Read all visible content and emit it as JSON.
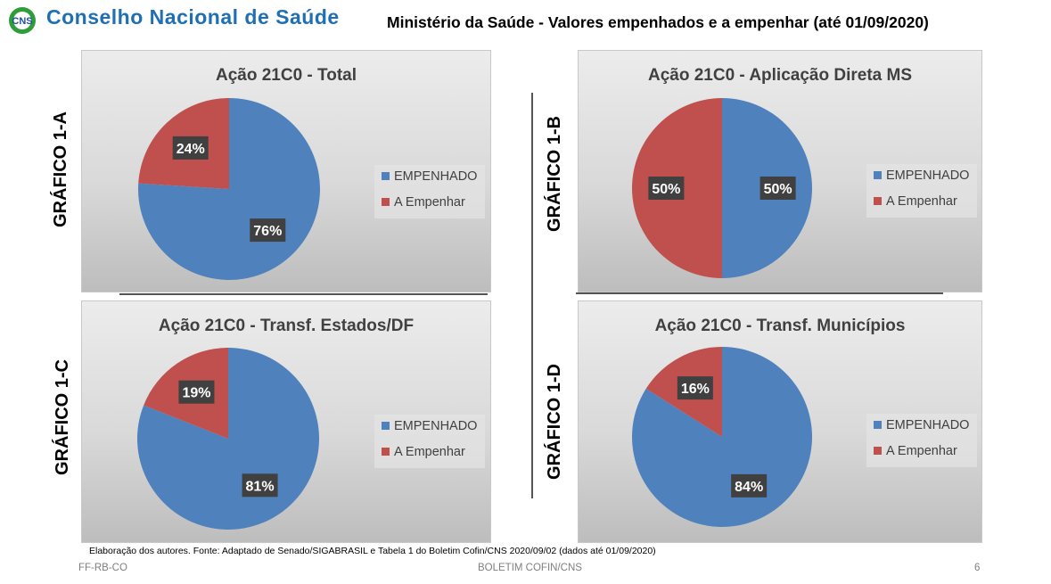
{
  "header": {
    "logo_text": "CNS",
    "org_name": "Conselho Nacional de Saúde",
    "subtitle": "Ministério da Saúde - Valores empenhados e a empenhar (até 01/09/2020)"
  },
  "side_labels": [
    "GRÁFICO 1-A",
    "GRÁFICO 1-B",
    "GRÁFICO 1-C",
    "GRÁFICO 1-D"
  ],
  "colors": {
    "empenhado": "#4f81bd",
    "a_empenhar": "#c0504d",
    "label_bg": "#404040"
  },
  "chart_data": [
    {
      "type": "pie",
      "title": "Ação 21C0 - Total",
      "categories": [
        "EMPENHADO",
        "A Empenhar"
      ],
      "values": [
        76,
        24
      ],
      "data_labels": [
        "76%",
        "24%"
      ],
      "legend": "right"
    },
    {
      "type": "pie",
      "title": "Ação 21C0 - Aplicação Direta MS",
      "categories": [
        "EMPENHADO",
        "A Empenhar"
      ],
      "values": [
        50,
        50
      ],
      "data_labels": [
        "50%",
        "50%"
      ],
      "legend": "right"
    },
    {
      "type": "pie",
      "title": "Ação 21C0 - Transf. Estados/DF",
      "categories": [
        "EMPENHADO",
        "A Empenhar"
      ],
      "values": [
        81,
        19
      ],
      "data_labels": [
        "81%",
        "19%"
      ],
      "legend": "right"
    },
    {
      "type": "pie",
      "title": "Ação 21C0 - Transf. Municípios",
      "categories": [
        "EMPENHADO",
        "A Empenhar"
      ],
      "values": [
        84,
        16
      ],
      "data_labels": [
        "84%",
        "16%"
      ],
      "legend": "right"
    }
  ],
  "source": "Elaboração dos autores. Fonte: Adaptado de Senado/SIGABRASIL e Tabela 1 do Boletim Cofin/CNS 2020/09/02  (dados até 01/09/2020)",
  "footer": {
    "left": "FF-RB-CO",
    "center": "BOLETIM COFIN/CNS",
    "page": "6"
  }
}
